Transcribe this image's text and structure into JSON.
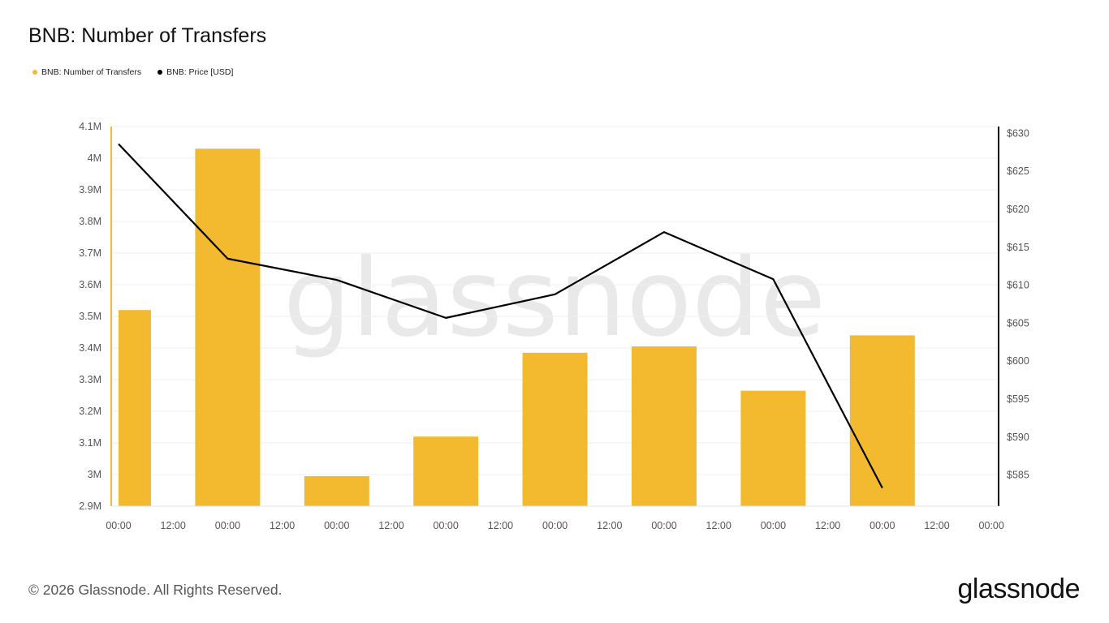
{
  "chart_data": {
    "type": "bar",
    "title": "BNB: Number of Transfers",
    "legend_position": "top-left",
    "grid": true,
    "x_ticks": [
      "00:00",
      "12:00",
      "00:00",
      "12:00",
      "00:00",
      "12:00",
      "00:00",
      "12:00",
      "00:00",
      "12:00",
      "00:00",
      "12:00",
      "00:00",
      "12:00",
      "00:00",
      "12:00",
      "00:00"
    ],
    "series": [
      {
        "name": "BNB: Number of Transfers",
        "type": "bar",
        "axis": "left",
        "color": "#F3BA2F",
        "values": [
          3520000,
          4030000,
          2995000,
          3120000,
          3385000,
          3405000,
          3265000,
          3440000
        ]
      },
      {
        "name": "BNB: Price [USD]",
        "type": "line",
        "axis": "right",
        "color": "#000000",
        "values": [
          628.6,
          613.5,
          610.7,
          605.7,
          608.8,
          617.0,
          610.8,
          583.3
        ]
      }
    ],
    "y_left": {
      "ylim": [
        2900000,
        4100000
      ],
      "ticks": [
        {
          "value": 4100000,
          "label": "4.1M"
        },
        {
          "value": 4000000,
          "label": "4M"
        },
        {
          "value": 3900000,
          "label": "3.9M"
        },
        {
          "value": 3800000,
          "label": "3.8M"
        },
        {
          "value": 3700000,
          "label": "3.7M"
        },
        {
          "value": 3600000,
          "label": "3.6M"
        },
        {
          "value": 3500000,
          "label": "3.5M"
        },
        {
          "value": 3400000,
          "label": "3.4M"
        },
        {
          "value": 3300000,
          "label": "3.3M"
        },
        {
          "value": 3200000,
          "label": "3.2M"
        },
        {
          "value": 3100000,
          "label": "3.1M"
        },
        {
          "value": 3000000,
          "label": "3M"
        },
        {
          "value": 2900000,
          "label": "2.9M"
        }
      ]
    },
    "y_right": {
      "ylim": [
        580.9,
        630.9
      ],
      "ticks": [
        {
          "value": 630,
          "label": "$630"
        },
        {
          "value": 625,
          "label": "$625"
        },
        {
          "value": 620,
          "label": "$620"
        },
        {
          "value": 615,
          "label": "$615"
        },
        {
          "value": 610,
          "label": "$610"
        },
        {
          "value": 605,
          "label": "$605"
        },
        {
          "value": 600,
          "label": "$600"
        },
        {
          "value": 595,
          "label": "$595"
        },
        {
          "value": 590,
          "label": "$590"
        },
        {
          "value": 585,
          "label": "$585"
        }
      ]
    }
  },
  "watermark": "glassnode",
  "footer": {
    "copyright": "© 2026 Glassnode. All Rights Reserved."
  },
  "brand": {
    "logo_text": "glassnode",
    "bar_color": "#F3BA2F",
    "line_color": "#000000"
  }
}
